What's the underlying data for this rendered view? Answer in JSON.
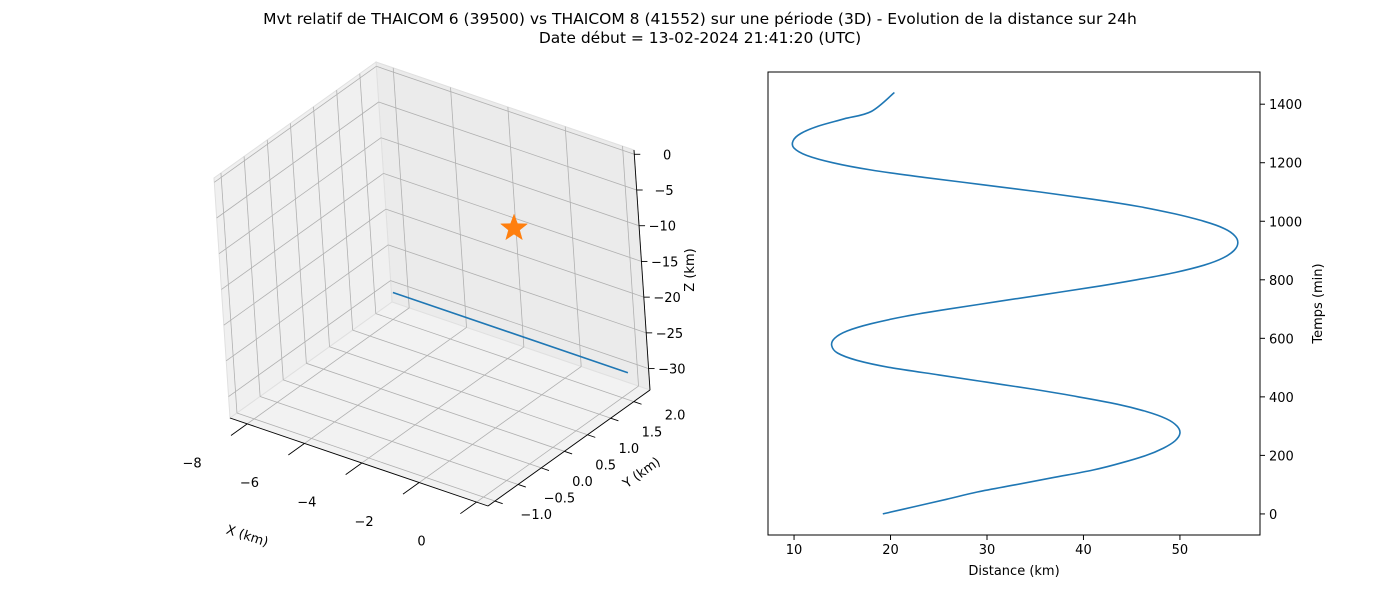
{
  "title_line1": "Mvt relatif de THAICOM 6 (39500) vs THAICOM 8 (41552) sur une période (3D) - Evolution de la distance sur 24h",
  "title_line2": "Date début = 13-02-2024 21:41:20 (UTC)",
  "colors": {
    "series": "#1f77b4",
    "marker": "#ff7f0e",
    "grid": "#b0b0b0",
    "pane": "#f2f2f2"
  },
  "chart_data": [
    {
      "type": "line3d",
      "xlabel": "X (km)",
      "ylabel": "Y (km)",
      "zlabel": "Z (km)",
      "xlim": [
        -8.6,
        0.4
      ],
      "ylim": [
        -1.15,
        2.35
      ],
      "zlim": [
        -33,
        0.6
      ],
      "xticks": [
        -8,
        -6,
        -4,
        -2,
        0
      ],
      "yticks": [
        -1.0,
        -0.5,
        0.0,
        0.5,
        1.0,
        1.5,
        2.0
      ],
      "zticks": [
        0,
        -5,
        -10,
        -15,
        -20,
        -25,
        -30
      ],
      "series": [
        {
          "x": [
            -8.2,
            0.0
          ],
          "y": [
            2.15,
            2.15
          ],
          "z": [
            -30.2,
            -30.2
          ]
        }
      ],
      "marker": {
        "shape": "star",
        "x": 0.0,
        "y": 0.0,
        "z": 0.0
      },
      "grid": true
    },
    {
      "type": "line",
      "xlabel": "Distance (km)",
      "ylabel": "Temps (min)",
      "y_axis_side": "right",
      "xlim": [
        7.3,
        58.3
      ],
      "ylim": [
        -72,
        1510
      ],
      "xticks": [
        10,
        20,
        30,
        40,
        50
      ],
      "yticks": [
        0,
        200,
        400,
        600,
        800,
        1000,
        1200,
        1400
      ],
      "series": [
        {
          "x": [
            19.2,
            22.5,
            25.8,
            29.0,
            33.0,
            37.0,
            41.0,
            44.0,
            46.5,
            48.3,
            49.5,
            50.0,
            49.7,
            48.6,
            46.5,
            43.5,
            39.5,
            35.0,
            30.0,
            25.0,
            20.0,
            16.5,
            14.5,
            13.9,
            14.2,
            15.5,
            18.0,
            21.5,
            26.0,
            31.0,
            36.0,
            41.0,
            45.5,
            49.5,
            52.5,
            54.5,
            55.6,
            56.0,
            55.7,
            54.6,
            52.5,
            49.5,
            45.8,
            41.0,
            35.5,
            29.5,
            23.5,
            18.0,
            14.0,
            11.3,
            10.0,
            9.9,
            10.7,
            12.5,
            15.2,
            18.0,
            20.4
          ],
          "y": [
            0,
            25,
            50,
            75,
            100,
            125,
            150,
            175,
            200,
            225,
            250,
            275,
            300,
            325,
            350,
            375,
            400,
            425,
            450,
            475,
            500,
            525,
            550,
            575,
            600,
            625,
            650,
            675,
            700,
            725,
            750,
            775,
            800,
            825,
            850,
            875,
            900,
            925,
            950,
            975,
            1000,
            1025,
            1050,
            1075,
            1100,
            1125,
            1150,
            1175,
            1200,
            1225,
            1250,
            1275,
            1300,
            1325,
            1350,
            1375,
            1440
          ]
        }
      ],
      "grid": false
    }
  ]
}
